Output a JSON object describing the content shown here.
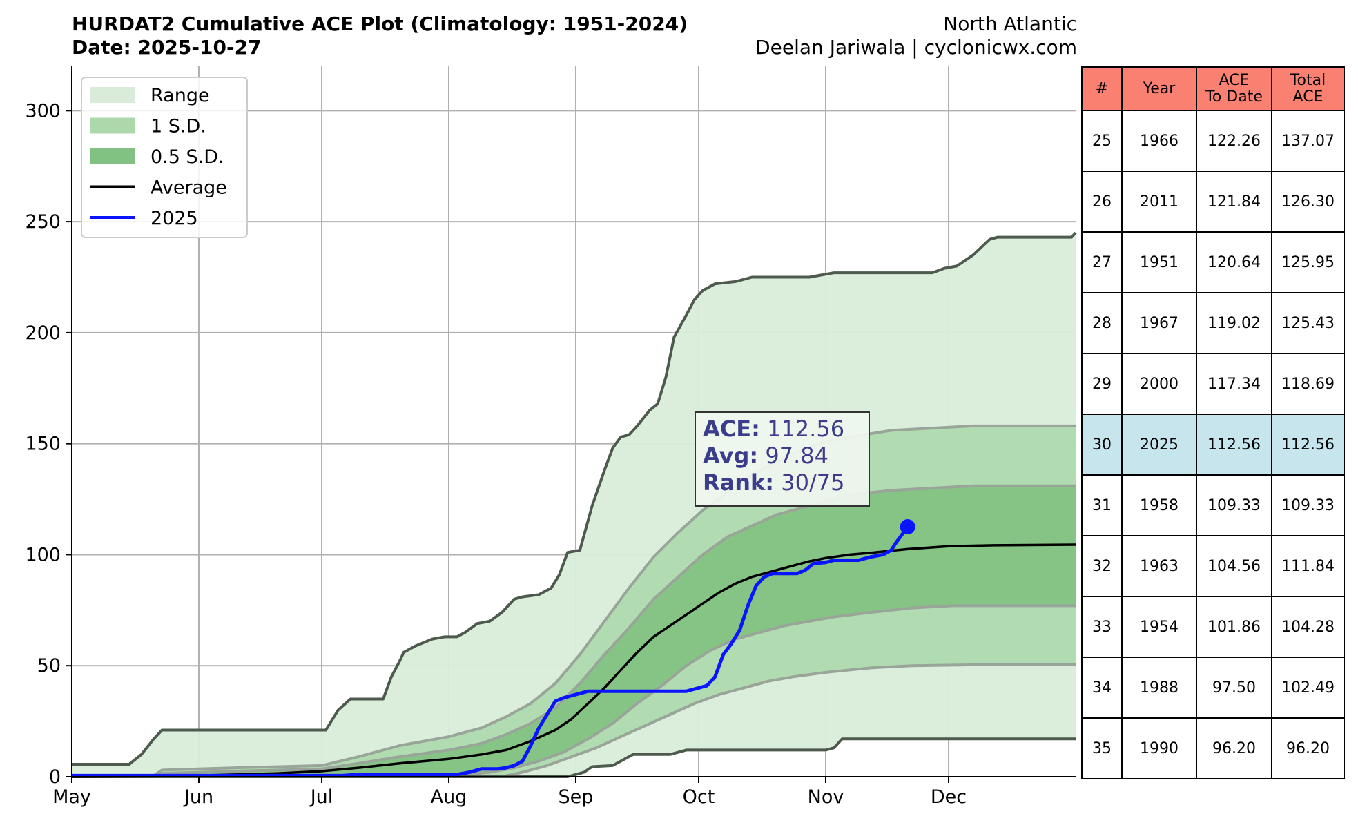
{
  "header": {
    "title": "HURDAT2 Cumulative ACE Plot (Climatology: 1951-2024)",
    "subtitle": "Date: 2025-10-27",
    "basin": "North Atlantic",
    "credit": "Deelan Jariwala | cyclonicwx.com"
  },
  "stats_box": {
    "ace_label": "ACE:",
    "ace_value": "112.56",
    "avg_label": "Avg:",
    "avg_value": "97.84",
    "rank_label": "Rank:",
    "rank_value": "30/75"
  },
  "colors": {
    "range": "#d9ecd9",
    "sd1": "#acd8ac",
    "sd05": "#81c181",
    "range_edge": "#4d5a4d",
    "sd_edge": "#9aa59a",
    "average": "#000000",
    "current": "#0a14ff",
    "table_header": "#fa8072",
    "table_highlight": "#c6e5ec"
  },
  "table": {
    "headers": [
      "#",
      "Year",
      "ACE\nTo Date",
      "Total\nACE"
    ],
    "highlight_rank": "30",
    "rows": [
      [
        "25",
        "1966",
        "122.26",
        "137.07"
      ],
      [
        "26",
        "2011",
        "121.84",
        "126.30"
      ],
      [
        "27",
        "1951",
        "120.64",
        "125.95"
      ],
      [
        "28",
        "1967",
        "119.02",
        "125.43"
      ],
      [
        "29",
        "2000",
        "117.34",
        "118.69"
      ],
      [
        "30",
        "2025",
        "112.56",
        "112.56"
      ],
      [
        "31",
        "1958",
        "109.33",
        "109.33"
      ],
      [
        "32",
        "1963",
        "104.56",
        "111.84"
      ],
      [
        "33",
        "1954",
        "101.86",
        "104.28"
      ],
      [
        "34",
        "1988",
        "97.50",
        "102.49"
      ],
      [
        "35",
        "1990",
        "96.20",
        "96.20"
      ]
    ]
  },
  "chart_data": {
    "type": "area",
    "xlabel": "",
    "ylabel": "",
    "xlim": [
      0,
      245
    ],
    "ylim": [
      0,
      320
    ],
    "x_units": "days since May 1",
    "x_ticks": [
      {
        "label": "May",
        "x": 0
      },
      {
        "label": "Jun",
        "x": 31
      },
      {
        "label": "Jul",
        "x": 61
      },
      {
        "label": "Aug",
        "x": 92
      },
      {
        "label": "Sep",
        "x": 123
      },
      {
        "label": "Oct",
        "x": 153
      },
      {
        "label": "Nov",
        "x": 184
      },
      {
        "label": "Dec",
        "x": 214
      }
    ],
    "y_ticks": [
      0,
      50,
      100,
      150,
      200,
      250,
      300
    ],
    "grid": true,
    "legend_position": "top-left",
    "legend": [
      "Range",
      "1 S.D.",
      "0.5 S.D.",
      "Average",
      "2025"
    ],
    "range_upper": [
      [
        0,
        5.6
      ],
      [
        14,
        5.6
      ],
      [
        17,
        10
      ],
      [
        20,
        17
      ],
      [
        22,
        21
      ],
      [
        30,
        21
      ],
      [
        61,
        21
      ],
      [
        62,
        21
      ],
      [
        65,
        30
      ],
      [
        68,
        35
      ],
      [
        76,
        35
      ],
      [
        78,
        45
      ],
      [
        80,
        52
      ],
      [
        81,
        56
      ],
      [
        84,
        59
      ],
      [
        88,
        62
      ],
      [
        91,
        63
      ],
      [
        94,
        63
      ],
      [
        96,
        65
      ],
      [
        99,
        69
      ],
      [
        102,
        70
      ],
      [
        105,
        74
      ],
      [
        108,
        80
      ],
      [
        110,
        81
      ],
      [
        114,
        82
      ],
      [
        117,
        85
      ],
      [
        119,
        91
      ],
      [
        121,
        101
      ],
      [
        124,
        102
      ],
      [
        127,
        122
      ],
      [
        130,
        138
      ],
      [
        132,
        148
      ],
      [
        134,
        153
      ],
      [
        136,
        154
      ],
      [
        138,
        158
      ],
      [
        141,
        165
      ],
      [
        143,
        168
      ],
      [
        145,
        180
      ],
      [
        147,
        198
      ],
      [
        150,
        208
      ],
      [
        152,
        215
      ],
      [
        154,
        219
      ],
      [
        157,
        222
      ],
      [
        162,
        223
      ],
      [
        166,
        225
      ],
      [
        170,
        225
      ],
      [
        180,
        225
      ],
      [
        186,
        227
      ],
      [
        210,
        227
      ],
      [
        213,
        229
      ],
      [
        216,
        230
      ],
      [
        220,
        235
      ],
      [
        224,
        242
      ],
      [
        226,
        243
      ],
      [
        244,
        243
      ],
      [
        245,
        245
      ]
    ],
    "range_lower": [
      [
        0,
        0
      ],
      [
        121,
        0
      ],
      [
        125,
        2
      ],
      [
        127,
        4.5
      ],
      [
        132,
        5
      ],
      [
        134,
        7
      ],
      [
        137,
        10
      ],
      [
        146,
        10
      ],
      [
        150,
        12
      ],
      [
        184,
        12
      ],
      [
        186,
        13
      ],
      [
        188,
        17
      ],
      [
        245,
        17
      ]
    ],
    "sd1_upper": [
      [
        0,
        0
      ],
      [
        20,
        0.5
      ],
      [
        22,
        3
      ],
      [
        40,
        4
      ],
      [
        61,
        5
      ],
      [
        70,
        9
      ],
      [
        80,
        14
      ],
      [
        92,
        18
      ],
      [
        100,
        22
      ],
      [
        106,
        27
      ],
      [
        112,
        33
      ],
      [
        118,
        42
      ],
      [
        124,
        55
      ],
      [
        130,
        70
      ],
      [
        136,
        85
      ],
      [
        142,
        99
      ],
      [
        148,
        110
      ],
      [
        154,
        120
      ],
      [
        160,
        128
      ],
      [
        166,
        136
      ],
      [
        172,
        142
      ],
      [
        178,
        147
      ],
      [
        184,
        151
      ],
      [
        190,
        153
      ],
      [
        200,
        156
      ],
      [
        210,
        157
      ],
      [
        220,
        158
      ],
      [
        245,
        158
      ]
    ],
    "sd1_lower": [
      [
        0,
        0
      ],
      [
        105,
        0
      ],
      [
        110,
        2
      ],
      [
        116,
        5
      ],
      [
        122,
        9
      ],
      [
        128,
        13
      ],
      [
        134,
        18
      ],
      [
        140,
        23
      ],
      [
        146,
        28
      ],
      [
        152,
        33
      ],
      [
        158,
        37
      ],
      [
        164,
        40
      ],
      [
        170,
        43
      ],
      [
        176,
        45
      ],
      [
        184,
        47
      ],
      [
        195,
        49
      ],
      [
        205,
        50
      ],
      [
        225,
        50.5
      ],
      [
        245,
        50.5
      ]
    ],
    "sd05_upper": [
      [
        0,
        0
      ],
      [
        20,
        0.2
      ],
      [
        22,
        1.5
      ],
      [
        40,
        2.5
      ],
      [
        61,
        3.5
      ],
      [
        70,
        6
      ],
      [
        80,
        9
      ],
      [
        92,
        12
      ],
      [
        100,
        15
      ],
      [
        106,
        19
      ],
      [
        112,
        24
      ],
      [
        118,
        31
      ],
      [
        124,
        42
      ],
      [
        130,
        55
      ],
      [
        136,
        67
      ],
      [
        142,
        80
      ],
      [
        148,
        90
      ],
      [
        154,
        100
      ],
      [
        160,
        108
      ],
      [
        166,
        113
      ],
      [
        172,
        118
      ],
      [
        178,
        121
      ],
      [
        184,
        124
      ],
      [
        190,
        127
      ],
      [
        200,
        129
      ],
      [
        210,
        130
      ],
      [
        220,
        131
      ],
      [
        245,
        131
      ]
    ],
    "sd05_lower": [
      [
        0,
        0
      ],
      [
        90,
        0
      ],
      [
        96,
        1
      ],
      [
        102,
        2
      ],
      [
        108,
        4
      ],
      [
        114,
        7
      ],
      [
        120,
        11
      ],
      [
        126,
        17
      ],
      [
        132,
        24
      ],
      [
        138,
        33
      ],
      [
        144,
        41
      ],
      [
        150,
        50
      ],
      [
        156,
        57
      ],
      [
        162,
        62
      ],
      [
        168,
        65
      ],
      [
        174,
        68
      ],
      [
        180,
        70
      ],
      [
        186,
        72
      ],
      [
        195,
        74
      ],
      [
        205,
        76
      ],
      [
        215,
        77
      ],
      [
        245,
        77
      ]
    ],
    "average": [
      [
        0,
        0
      ],
      [
        20,
        0.2
      ],
      [
        30,
        0.5
      ],
      [
        50,
        1.5
      ],
      [
        61,
        2.5
      ],
      [
        70,
        4
      ],
      [
        80,
        6
      ],
      [
        92,
        8
      ],
      [
        100,
        10
      ],
      [
        106,
        12
      ],
      [
        112,
        16
      ],
      [
        118,
        21
      ],
      [
        122,
        26
      ],
      [
        126,
        33
      ],
      [
        130,
        40
      ],
      [
        134,
        48
      ],
      [
        138,
        56
      ],
      [
        142,
        63
      ],
      [
        146,
        68
      ],
      [
        150,
        73
      ],
      [
        154,
        78
      ],
      [
        158,
        83
      ],
      [
        162,
        87
      ],
      [
        166,
        90
      ],
      [
        170,
        92
      ],
      [
        174,
        94
      ],
      [
        180,
        97
      ],
      [
        184,
        98.5
      ],
      [
        190,
        100
      ],
      [
        196,
        101
      ],
      [
        204,
        102.5
      ],
      [
        214,
        103.8
      ],
      [
        225,
        104.2
      ],
      [
        245,
        104.5
      ]
    ],
    "series": [
      {
        "name": "2025",
        "points": [
          [
            0,
            0.5
          ],
          [
            66,
            0.5
          ],
          [
            70,
            1
          ],
          [
            94,
            1
          ],
          [
            97,
            2
          ],
          [
            100,
            3.5
          ],
          [
            104,
            3.5
          ],
          [
            106,
            4
          ],
          [
            108,
            5
          ],
          [
            110,
            7
          ],
          [
            112,
            14
          ],
          [
            114,
            22
          ],
          [
            116,
            28
          ],
          [
            118,
            34
          ],
          [
            120,
            35.5
          ],
          [
            121,
            36
          ],
          [
            124,
            37.5
          ],
          [
            126,
            38.5
          ],
          [
            128,
            38.5
          ],
          [
            134,
            38.5
          ],
          [
            140,
            38.5
          ],
          [
            146,
            38.5
          ],
          [
            150,
            38.5
          ],
          [
            153,
            40
          ],
          [
            155,
            41
          ],
          [
            157,
            45
          ],
          [
            159,
            55
          ],
          [
            161,
            60
          ],
          [
            163,
            66
          ],
          [
            165,
            77
          ],
          [
            167,
            86
          ],
          [
            169,
            90
          ],
          [
            171,
            91.5
          ],
          [
            177,
            91.5
          ],
          [
            179,
            93
          ],
          [
            181,
            96
          ],
          [
            184,
            96.5
          ],
          [
            186,
            97.5
          ],
          [
            190,
            97.5
          ],
          [
            192,
            97.5
          ],
          [
            195,
            99
          ],
          [
            198,
            100
          ],
          [
            200,
            102
          ],
          [
            201,
            105
          ],
          [
            203,
            110
          ],
          [
            204,
            112.56
          ]
        ]
      }
    ],
    "current_value": 112.56
  }
}
